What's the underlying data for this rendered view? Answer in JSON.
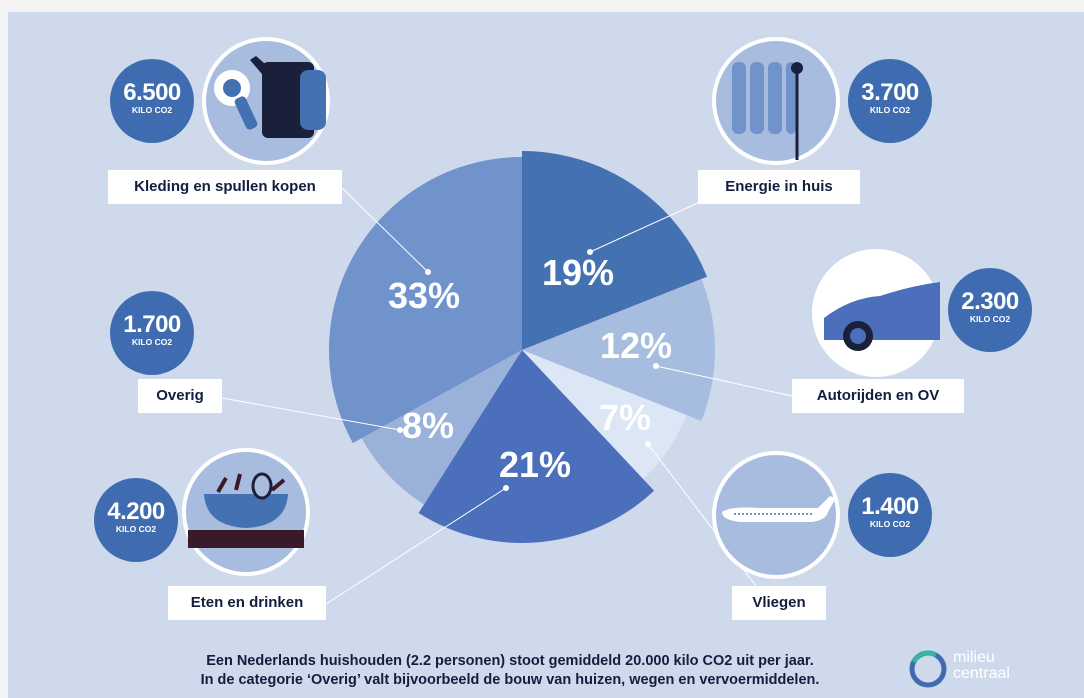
{
  "chart_data": {
    "type": "pie",
    "slices": [
      {
        "label": "Energie in huis",
        "percent_label": "19%",
        "value": 19,
        "amount": "3.700",
        "color": "#4471b2"
      },
      {
        "label": "Autorijden en OV",
        "percent_label": "12%",
        "value": 12,
        "amount": "2.300",
        "color": "#a7bde0"
      },
      {
        "label": "Vliegen",
        "percent_label": "7%",
        "value": 7,
        "amount": "1.400",
        "color": "#dce6f4"
      },
      {
        "label": "Eten en drinken",
        "percent_label": "21%",
        "value": 21,
        "amount": "4.200",
        "color": "#4b6fbb"
      },
      {
        "label": "Overig",
        "percent_label": "8%",
        "value": 8,
        "amount": "1.700",
        "color": "#9ab1da"
      },
      {
        "label": "Kleding en spullen kopen",
        "percent_label": "33%",
        "value": 33,
        "amount": "6.500",
        "color": "#7093cb"
      }
    ],
    "unit_label": "KILO CO2"
  },
  "footer": {
    "line1": "Een Nederlands huishouden (2.2 personen) stoot gemiddeld 20.000 kilo CO2 uit per jaar.",
    "line2": "In de categorie ‘Overig’ valt bijvoorbeeld de bouw van huizen, wegen en vervoermiddelen."
  },
  "logo": {
    "line1": "milieu",
    "line2": "centraal"
  },
  "icons": [
    "hairdryer-jacket-icon",
    "radiator-icon",
    "car-icon",
    "airplane-icon",
    "food-bowl-icon"
  ],
  "colors": {
    "background": "#cfd9ec",
    "badge": "#3f6cb0",
    "text": "#141d3d"
  }
}
